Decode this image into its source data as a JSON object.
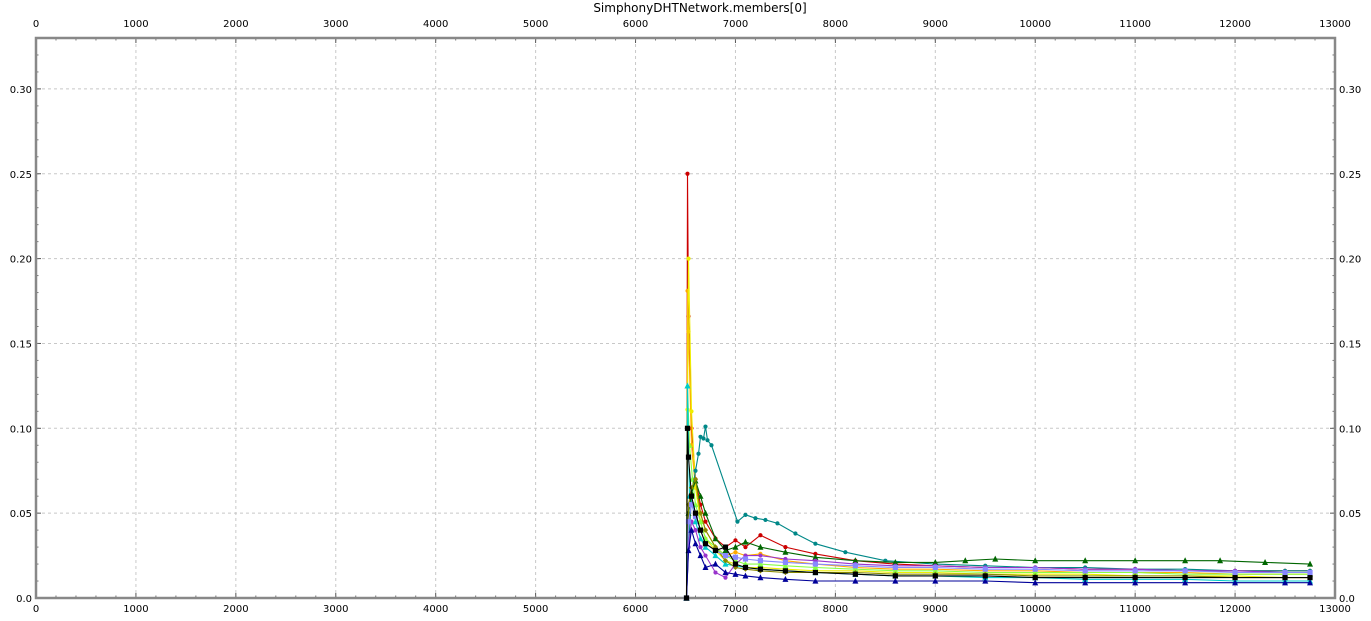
{
  "chart_data": {
    "type": "line",
    "title": "SimphonyDHTNetwork.members[0]",
    "xlabel": "",
    "ylabel": "",
    "xlim": [
      0,
      13000
    ],
    "ylim": [
      0,
      0.33
    ],
    "x_ticks": [
      "0",
      "1000",
      "2000",
      "3000",
      "4000",
      "5000",
      "6000",
      "7000",
      "8000",
      "9000",
      "10000",
      "11000",
      "12000",
      "13000"
    ],
    "y_ticks": [
      "0.0",
      "0.05",
      "0.10",
      "0.15",
      "0.20",
      "0.25",
      "0.30"
    ],
    "grid": true,
    "legend": "none",
    "series": [
      {
        "color": "#cc0000",
        "marker": "circle",
        "x": [
          6510,
          6520,
          6530,
          6560,
          6600,
          6650,
          6700,
          6800,
          6900,
          7000,
          7100,
          7250,
          7500,
          7800,
          8200,
          8600,
          9000,
          9500,
          10000,
          10500,
          11000,
          11500,
          12000,
          12500,
          12750
        ],
        "y": [
          0.0,
          0.25,
          0.166,
          0.1,
          0.07,
          0.055,
          0.045,
          0.035,
          0.03,
          0.034,
          0.03,
          0.037,
          0.03,
          0.026,
          0.022,
          0.02,
          0.019,
          0.018,
          0.018,
          0.017,
          0.017,
          0.016,
          0.016,
          0.016,
          0.016
        ]
      },
      {
        "color": "#ffaa00",
        "marker": "circle",
        "x": [
          6510,
          6520,
          6530,
          6560,
          6600,
          6650,
          6700,
          6800,
          6900,
          7000,
          7100,
          7250,
          7500,
          7800,
          8200,
          8600,
          9000,
          9500,
          10000,
          10500,
          11000,
          11500,
          12000,
          12500,
          12750
        ],
        "y": [
          0.0,
          0.181,
          0.157,
          0.09,
          0.065,
          0.05,
          0.04,
          0.03,
          0.025,
          0.027,
          0.025,
          0.026,
          0.022,
          0.02,
          0.018,
          0.017,
          0.017,
          0.016,
          0.016,
          0.015,
          0.015,
          0.015,
          0.014,
          0.014,
          0.014
        ]
      },
      {
        "color": "#eeee00",
        "marker": "circle",
        "x": [
          6510,
          6520,
          6530,
          6560,
          6600,
          6650,
          6700,
          6800,
          6900,
          7000,
          7100,
          7250,
          7500,
          7800,
          8200,
          8600,
          9000,
          9500,
          10000,
          10500,
          11000,
          11500,
          12000,
          12500,
          12750
        ],
        "y": [
          0.0,
          0.111,
          0.2,
          0.11,
          0.065,
          0.045,
          0.035,
          0.028,
          0.022,
          0.02,
          0.018,
          0.018,
          0.017,
          0.016,
          0.016,
          0.015,
          0.015,
          0.014,
          0.014,
          0.014,
          0.013,
          0.013,
          0.013,
          0.012,
          0.012
        ]
      },
      {
        "color": "#88ff44",
        "marker": "triangle",
        "x": [
          6510,
          6520,
          6540,
          6570,
          6600,
          6650,
          6700,
          6800,
          6900,
          7000,
          7100,
          7250,
          7500,
          7800,
          8200,
          8600,
          9000,
          9500,
          10000,
          10500,
          11000,
          11500,
          12000,
          12500,
          12750
        ],
        "y": [
          0.0,
          0.125,
          0.09,
          0.07,
          0.055,
          0.045,
          0.035,
          0.03,
          0.025,
          0.022,
          0.02,
          0.02,
          0.019,
          0.018,
          0.017,
          0.016,
          0.016,
          0.015,
          0.015,
          0.015,
          0.015,
          0.014,
          0.014,
          0.014,
          0.014
        ]
      },
      {
        "color": "#00cccc",
        "marker": "triangle",
        "x": [
          6510,
          6520,
          6540,
          6570,
          6600,
          6650,
          6700,
          6800,
          6900,
          7000,
          7100,
          7250,
          7500,
          7800,
          8200,
          8600,
          9000,
          9500,
          10000,
          10500,
          11000,
          11500,
          12000,
          12500,
          12750
        ],
        "y": [
          0.0,
          0.125,
          0.06,
          0.055,
          0.045,
          0.035,
          0.03,
          0.025,
          0.02,
          0.019,
          0.018,
          0.017,
          0.016,
          0.015,
          0.014,
          0.013,
          0.013,
          0.012,
          0.012,
          0.011,
          0.011,
          0.011,
          0.01,
          0.01,
          0.01
        ]
      },
      {
        "color": "#008888",
        "marker": "circle",
        "x": [
          6510,
          6530,
          6560,
          6600,
          6630,
          6650,
          6680,
          6700,
          6720,
          6760,
          7020,
          7100,
          7200,
          7300,
          7420,
          7600,
          7800,
          8100,
          8500,
          9000,
          9500,
          10000,
          10500,
          11000,
          11500,
          12000,
          12500,
          12750
        ],
        "y": [
          0.0,
          0.03,
          0.06,
          0.075,
          0.085,
          0.095,
          0.094,
          0.101,
          0.093,
          0.09,
          0.045,
          0.049,
          0.047,
          0.046,
          0.044,
          0.038,
          0.032,
          0.027,
          0.022,
          0.02,
          0.019,
          0.018,
          0.018,
          0.017,
          0.017,
          0.016,
          0.016,
          0.016
        ]
      },
      {
        "color": "#006600",
        "marker": "triangle",
        "x": [
          6510,
          6530,
          6560,
          6600,
          6650,
          6700,
          6800,
          6900,
          7000,
          7100,
          7250,
          7500,
          7800,
          8200,
          8600,
          9000,
          9300,
          9600,
          10000,
          10500,
          11000,
          11500,
          11850,
          12300,
          12750
        ],
        "y": [
          0.0,
          0.05,
          0.062,
          0.069,
          0.06,
          0.05,
          0.035,
          0.028,
          0.03,
          0.033,
          0.03,
          0.027,
          0.024,
          0.022,
          0.021,
          0.021,
          0.022,
          0.023,
          0.022,
          0.022,
          0.022,
          0.022,
          0.022,
          0.021,
          0.02
        ]
      },
      {
        "color": "#888800",
        "marker": "diamond",
        "x": [
          6510,
          6530,
          6560,
          6600,
          6650,
          6700,
          6800,
          6900,
          7000,
          7100,
          7250,
          7500,
          7800,
          8200,
          8600,
          9000,
          9500,
          10000,
          10500,
          11000,
          11500,
          12000,
          12500,
          12750
        ],
        "y": [
          0.0,
          0.055,
          0.065,
          0.07,
          0.05,
          0.04,
          0.03,
          0.022,
          0.018,
          0.017,
          0.016,
          0.015,
          0.015,
          0.015,
          0.014,
          0.014,
          0.014,
          0.013,
          0.013,
          0.013,
          0.013,
          0.012,
          0.012,
          0.012
        ]
      },
      {
        "color": "#9933cc",
        "marker": "circle",
        "x": [
          6510,
          6530,
          6560,
          6600,
          6650,
          6700,
          6800,
          6900,
          7000,
          7100,
          7250,
          7500,
          7800,
          8200,
          8600,
          9000,
          9500,
          10000,
          10500,
          11000,
          11500,
          12000,
          12500,
          12750
        ],
        "y": [
          0.0,
          0.03,
          0.045,
          0.04,
          0.03,
          0.025,
          0.015,
          0.012,
          0.02,
          0.025,
          0.025,
          0.023,
          0.022,
          0.02,
          0.019,
          0.019,
          0.018,
          0.018,
          0.017,
          0.017,
          0.016,
          0.016,
          0.015,
          0.015
        ]
      },
      {
        "color": "#8888ff",
        "marker": "square",
        "x": [
          6510,
          6530,
          6560,
          6600,
          6650,
          6700,
          6800,
          6900,
          7000,
          7100,
          7250,
          7500,
          7800,
          8200,
          8600,
          9000,
          9500,
          10000,
          10500,
          11000,
          11500,
          12000,
          12500,
          12750
        ],
        "y": [
          0.0,
          0.045,
          0.055,
          0.048,
          0.04,
          0.032,
          0.028,
          0.025,
          0.024,
          0.023,
          0.022,
          0.021,
          0.02,
          0.019,
          0.018,
          0.018,
          0.017,
          0.017,
          0.016,
          0.016,
          0.016,
          0.015,
          0.015,
          0.015
        ]
      },
      {
        "color": "#000099",
        "marker": "triangle",
        "x": [
          6510,
          6530,
          6560,
          6600,
          6650,
          6700,
          6800,
          6900,
          7000,
          7100,
          7250,
          7500,
          7800,
          8200,
          8600,
          9000,
          9500,
          10000,
          10500,
          11000,
          11500,
          12000,
          12500,
          12750
        ],
        "y": [
          0.0,
          0.028,
          0.04,
          0.032,
          0.025,
          0.018,
          0.02,
          0.015,
          0.014,
          0.013,
          0.012,
          0.011,
          0.01,
          0.01,
          0.01,
          0.01,
          0.01,
          0.009,
          0.009,
          0.009,
          0.009,
          0.009,
          0.009,
          0.009
        ]
      },
      {
        "color": "#000000",
        "marker": "square",
        "x": [
          6510,
          6520,
          6530,
          6560,
          6600,
          6650,
          6700,
          6800,
          6900,
          7000,
          7100,
          7250,
          7500,
          7800,
          8200,
          8600,
          9000,
          9500,
          10000,
          10500,
          11000,
          11500,
          12000,
          12500,
          12750
        ],
        "y": [
          0.0,
          0.1,
          0.083,
          0.06,
          0.05,
          0.04,
          0.032,
          0.028,
          0.03,
          0.02,
          0.018,
          0.017,
          0.016,
          0.015,
          0.014,
          0.013,
          0.013,
          0.013,
          0.012,
          0.012,
          0.012,
          0.012,
          0.012,
          0.012,
          0.012
        ]
      }
    ]
  }
}
